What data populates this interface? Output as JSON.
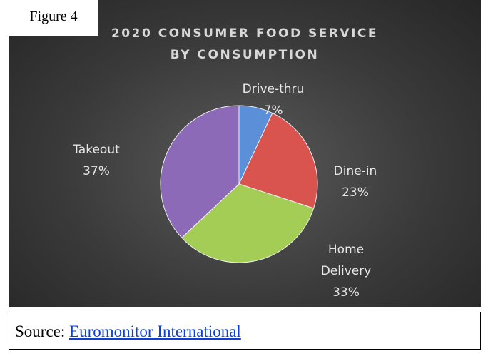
{
  "figure_label": "Figure 4",
  "source": {
    "prefix": "Source:",
    "link": "Euromonitor International"
  },
  "chart_data": {
    "type": "pie",
    "title": "2020 CONSUMER FOOD SERVICE BY CONSUMPTION",
    "categories": [
      "Drive-thru",
      "Dine-in",
      "Home Delivery",
      "Takeout"
    ],
    "values": [
      7,
      23,
      33,
      37
    ],
    "value_labels": [
      "7%",
      "23%",
      "33%",
      "37%"
    ],
    "colors": [
      "#5b8fd8",
      "#d9534f",
      "#a4cd55",
      "#8d6ab8"
    ]
  }
}
